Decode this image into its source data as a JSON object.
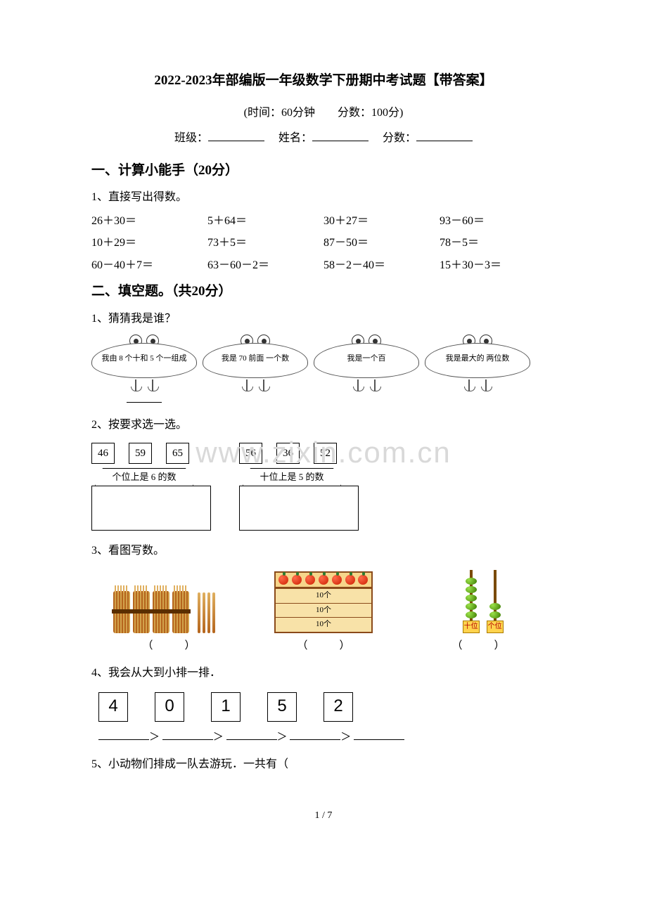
{
  "title": "2022-2023年部编版一年级数学下册期中考试题【带答案】",
  "meta": "(时间：60分钟　　分数：100分)",
  "fill": {
    "class_label": "班级：",
    "name_label": "姓名：",
    "score_label": "分数："
  },
  "section1": {
    "heading": "一、计算小能手（20分）",
    "q1": "1、直接写出得数。"
  },
  "calc": {
    "row1": [
      "26＋30＝",
      "5＋64＝",
      "30＋27＝",
      "93－60＝"
    ],
    "row2": [
      "10＋29＝",
      "73＋5＝",
      "87－50＝",
      "78－5＝"
    ],
    "row3": [
      "60－40＋7＝",
      "63－60－2＝",
      "58－2－40＝",
      "15＋30－3＝"
    ]
  },
  "section2": {
    "heading": "二、填空题。（共20分）"
  },
  "s2q1": {
    "label": "1、猜猜我是谁？",
    "clouds": [
      "我由 8 个十和\n5 个一组成",
      "我是 70 前面\n一个数",
      "我是一个百",
      "我是最大的\n两位数"
    ]
  },
  "watermark": "www.zixin.com.cn",
  "s2q2": {
    "label": "2、按要求选一选。",
    "nums_left": [
      "46",
      "59",
      "65"
    ],
    "nums_right": [
      "56",
      "36",
      "52"
    ],
    "cat_left": "个位上是 6 的数",
    "cat_right": "十位上是 5 的数"
  },
  "s2q3": {
    "label": "3、看图写数。",
    "drawer_label": "10个",
    "tens_label": "十位",
    "ones_label": "个位",
    "paren": "（　　　）"
  },
  "s2q4": {
    "label": "4、我会从大到小排一排．",
    "nums": [
      "4",
      "0",
      "1",
      "5",
      "2"
    ],
    "gt": "＞"
  },
  "s2q5": {
    "label": "5、小动物们排成一队去游玩．一共有（"
  },
  "footer": "1 / 7"
}
